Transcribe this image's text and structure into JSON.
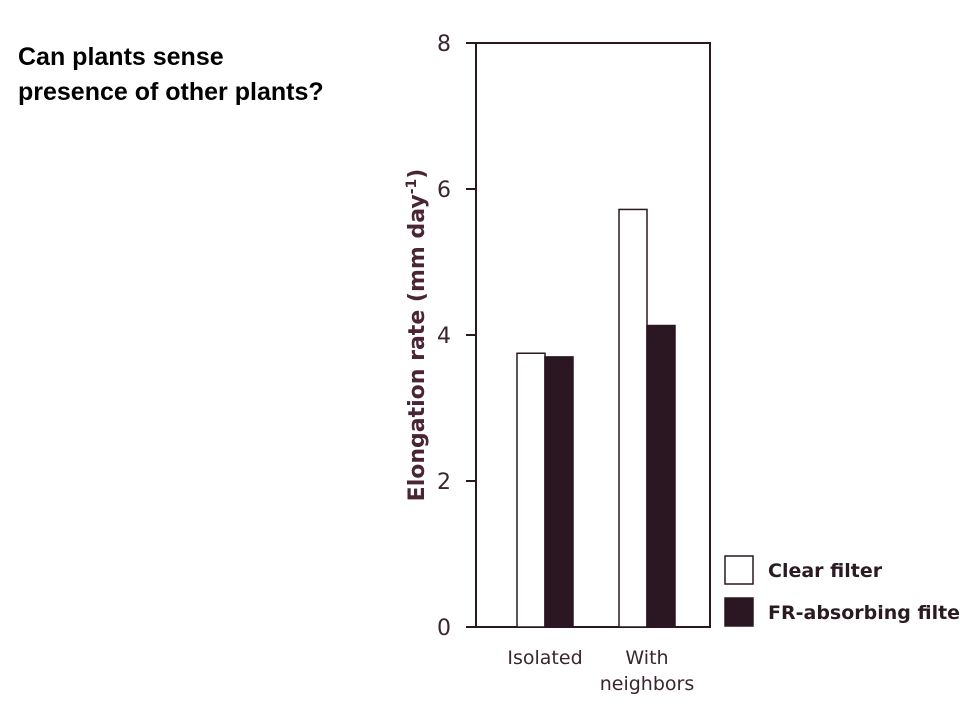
{
  "title": {
    "line1": "Can plants sense",
    "line2": "presence of other plants?"
  },
  "chart_data": {
    "type": "bar",
    "categories": [
      "Isolated",
      "With\nneighbors"
    ],
    "category_lines": [
      [
        "Isolated"
      ],
      [
        "With",
        "neighbors"
      ]
    ],
    "series": [
      {
        "name": "Clear filter",
        "values": [
          3.75,
          5.72
        ],
        "color": "#ffffff"
      },
      {
        "name": "FR-absorbing filter",
        "values": [
          3.7,
          4.13
        ],
        "color": "#2b1722"
      }
    ],
    "ylabel": "Elongation rate (mm day",
    "ylabel_sup": "-1",
    "ylabel_close": ")",
    "ylim": [
      0,
      8
    ],
    "yticks": [
      0,
      2,
      4,
      6,
      8
    ],
    "grid": false,
    "legend_position": "bottom-right"
  }
}
